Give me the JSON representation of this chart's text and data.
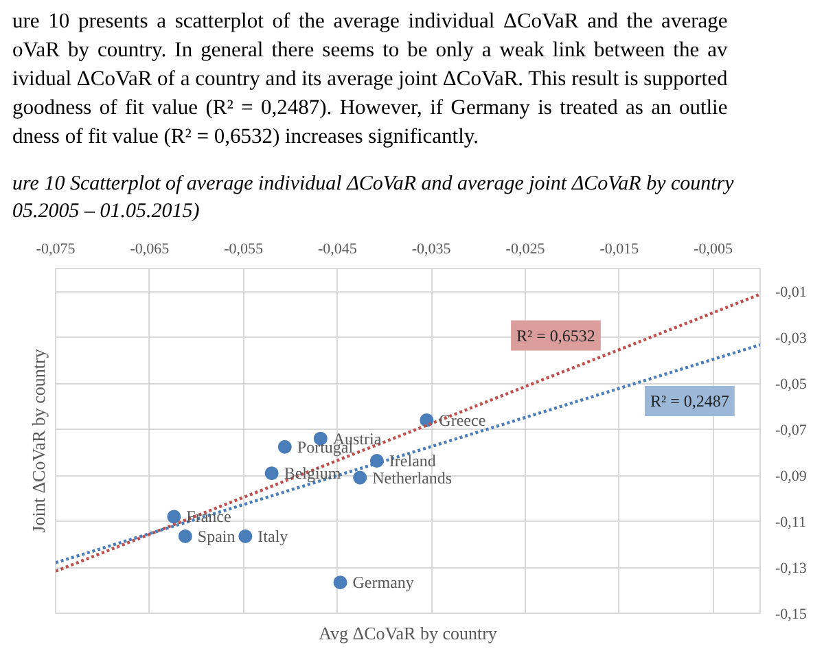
{
  "chart_data": {
    "type": "scatter",
    "title": "ure 10 Scatterplot of average individual ΔCoVaR and average joint ΔCoVaR by country\n05.2005 – 01.05.2015)",
    "annotations": [
      "ure 10 presents a scatterplot of the average individual ΔCoVaR and the average",
      "oVaR by country. In general there seems to be only a weak link between the av",
      "ividual ΔCoVaR of a country and its average joint ΔCoVaR. This result is supported",
      "goodness of fit value (R² = 0,2487). However, if Germany is treated as an outlie",
      "dness of fit value (R² = 0,6532) increases significantly.",
      {
        "text": "Greece",
        "x": -0.0355,
        "y": -0.066
      },
      {
        "text": "Austria",
        "x": -0.0468,
        "y": -0.074
      },
      {
        "text": "Portugal",
        "x": -0.0506,
        "y": -0.0776
      },
      {
        "text": "Ireland",
        "x": -0.0408,
        "y": -0.0837
      },
      {
        "text": "Belgium",
        "x": -0.052,
        "y": -0.0891
      },
      {
        "text": "Netherlands",
        "x": -0.0426,
        "y": -0.091
      },
      {
        "text": "France",
        "x": -0.0624,
        "y": -0.108
      },
      {
        "text": "Spain",
        "x": -0.0612,
        "y": -0.1165
      },
      {
        "text": "Italy",
        "x": -0.0548,
        "y": -0.1165
      },
      {
        "text": "Germany",
        "x": -0.0447,
        "y": -0.1366
      }
    ],
    "xlabel": "Avg ΔCoVaR by country",
    "ylabel": "Joint ΔCoVaR by country",
    "xlim": [
      -0.075,
      0
    ],
    "xticks": [
      {
        "value": -0.075,
        "label": "-0,075"
      },
      {
        "value": -0.065,
        "label": "-0,065"
      },
      {
        "value": -0.055,
        "label": "-0,055"
      },
      {
        "value": -0.045,
        "label": "-0,045"
      },
      {
        "value": -0.035,
        "label": "-0,035"
      },
      {
        "value": -0.025,
        "label": "-0,025"
      },
      {
        "value": -0.015,
        "label": "-0,015"
      },
      {
        "value": -0.005,
        "label": "-0,005"
      }
    ],
    "ylim": [
      -0.15,
      0
    ],
    "yticks": [
      {
        "value": -0.01,
        "label": "-0,01"
      },
      {
        "value": -0.03,
        "label": "-0,03"
      },
      {
        "value": -0.05,
        "label": "-0,05"
      },
      {
        "value": -0.07,
        "label": "-0,07"
      },
      {
        "value": -0.09,
        "label": "-0,09"
      },
      {
        "value": -0.11,
        "label": "-0,11"
      },
      {
        "value": -0.13,
        "label": "-0,13"
      },
      {
        "value": -0.15,
        "label": "-0,15"
      }
    ],
    "grid": true,
    "marker": "circle",
    "series": [
      {
        "color": "#4a7ebb",
        "x": [
          -0.0355,
          -0.0468,
          -0.0506,
          -0.0408,
          -0.052,
          -0.0426,
          -0.0624,
          -0.0612,
          -0.0548,
          -0.0447
        ],
        "values": [
          -0.066,
          -0.074,
          -0.0776,
          -0.0837,
          -0.0891,
          -0.091,
          -0.108,
          -0.1165,
          -0.1165,
          -0.1366
        ]
      },
      {
        "type": "line",
        "name": "R² = 0,6532",
        "color": "#c0504d",
        "line_style": "dotted",
        "marker": "none",
        "x": [
          -0.075,
          0
        ],
        "values": [
          -0.1317,
          -0.0112
        ]
      },
      {
        "type": "line",
        "name": "R² = 0,2487",
        "color": "#4a7ebb",
        "line_style": "dotted",
        "marker": "none",
        "x": [
          -0.075,
          0
        ],
        "values": [
          -0.128,
          -0.0332
        ]
      }
    ]
  }
}
